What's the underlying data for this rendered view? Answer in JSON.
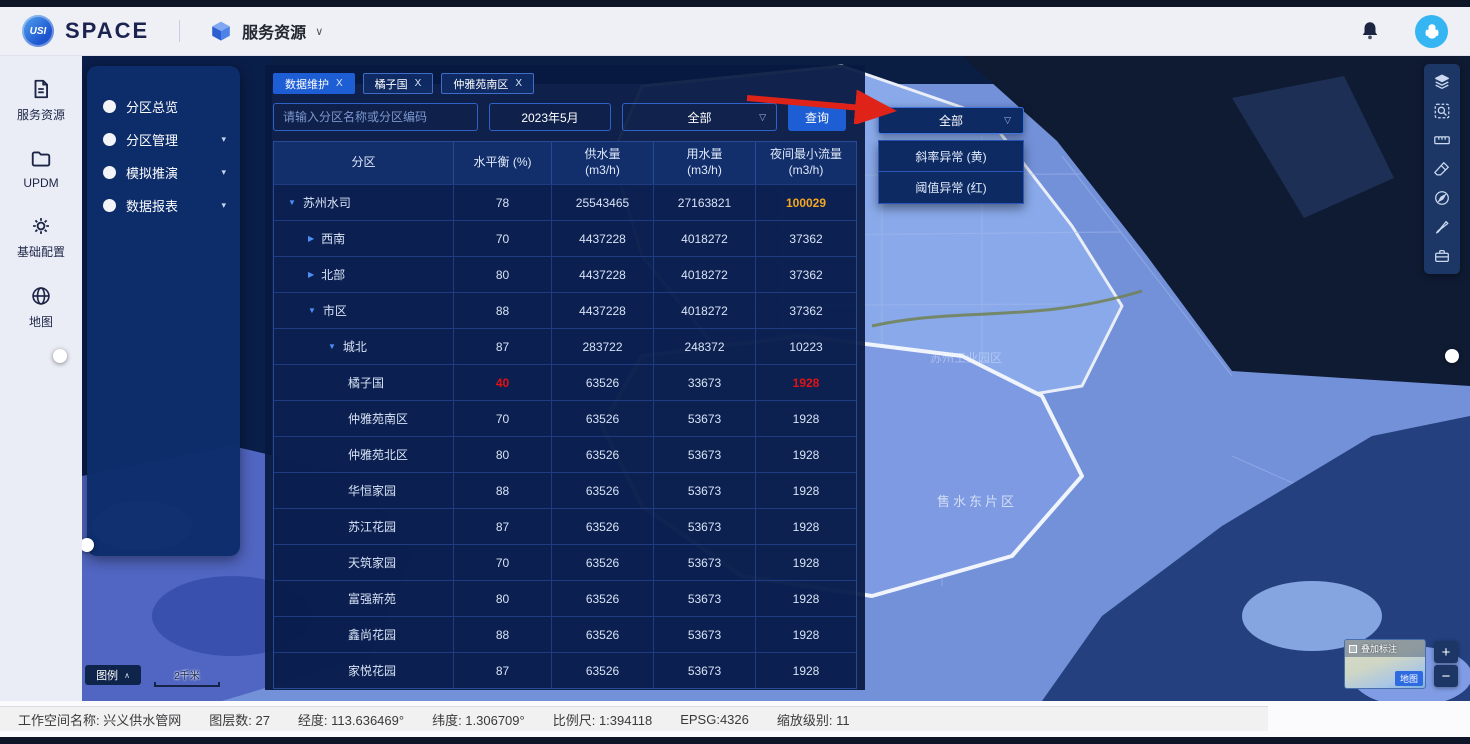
{
  "topbar": {
    "logo_text": "USI",
    "brand": "SPACE",
    "menu_label": "服务资源"
  },
  "sidebar": {
    "items": [
      {
        "label": "服务资源",
        "icon": "document"
      },
      {
        "label": "UPDM",
        "icon": "folder"
      },
      {
        "label": "基础配置",
        "icon": "gear"
      },
      {
        "label": "地图",
        "icon": "globe"
      }
    ]
  },
  "panel_menu": {
    "items": [
      {
        "label": "分区总览",
        "has_children": false
      },
      {
        "label": "分区管理",
        "has_children": true
      },
      {
        "label": "模拟推演",
        "has_children": true
      },
      {
        "label": "数据报表",
        "has_children": true
      }
    ]
  },
  "workspace": {
    "close_label": "X",
    "tabs": [
      {
        "label": "数据维护",
        "active": true
      },
      {
        "label": "橘子国",
        "active": false
      },
      {
        "label": "仲雅苑南区",
        "active": false
      }
    ]
  },
  "filters": {
    "search_placeholder": "请输入分区名称或分区编码",
    "month_value": "2023年5月",
    "type_selected": "全部",
    "query_label": "查询"
  },
  "anomaly_dropdown": {
    "selected": "全部",
    "options": [
      "斜率异常 (黄)",
      "阈值异常 (红)"
    ]
  },
  "table": {
    "columns": [
      "分区",
      "水平衡 (%)",
      "供水量\n(m3/h)",
      "用水量\n(m3/h)",
      "夜间最小流量\n(m3/h)"
    ],
    "rows": [
      {
        "name": "苏州水司",
        "level": 0,
        "expand": "open",
        "balance": "78",
        "supply": "25543465",
        "usage": "27163821",
        "night": "100029",
        "night_color": "orange"
      },
      {
        "name": "西南",
        "level": 1,
        "expand": "closed",
        "balance": "70",
        "supply": "4437228",
        "usage": "4018272",
        "night": "37362"
      },
      {
        "name": "北部",
        "level": 1,
        "expand": "closed",
        "balance": "80",
        "supply": "4437228",
        "usage": "4018272",
        "night": "37362"
      },
      {
        "name": "市区",
        "level": 1,
        "expand": "open",
        "balance": "88",
        "supply": "4437228",
        "usage": "4018272",
        "night": "37362"
      },
      {
        "name": "城北",
        "level": 2,
        "expand": "open",
        "balance": "87",
        "supply": "283722",
        "usage": "248372",
        "night": "10223"
      },
      {
        "name": "橘子国",
        "level": 3,
        "expand": null,
        "balance": "40",
        "balance_color": "red",
        "supply": "63526",
        "usage": "33673",
        "night": "1928",
        "night_color": "red"
      },
      {
        "name": "仲雅苑南区",
        "level": 3,
        "expand": null,
        "balance": "70",
        "supply": "63526",
        "usage": "53673",
        "night": "1928"
      },
      {
        "name": "仲雅苑北区",
        "level": 3,
        "expand": null,
        "balance": "80",
        "supply": "63526",
        "usage": "53673",
        "night": "1928"
      },
      {
        "name": "华恒家园",
        "level": 3,
        "expand": null,
        "balance": "88",
        "supply": "63526",
        "usage": "53673",
        "night": "1928"
      },
      {
        "name": "苏江花园",
        "level": 3,
        "expand": null,
        "balance": "87",
        "supply": "63526",
        "usage": "53673",
        "night": "1928"
      },
      {
        "name": "天筑家园",
        "level": 3,
        "expand": null,
        "balance": "70",
        "supply": "63526",
        "usage": "53673",
        "night": "1928"
      },
      {
        "name": "富强新苑",
        "level": 3,
        "expand": null,
        "balance": "80",
        "supply": "63526",
        "usage": "53673",
        "night": "1928"
      },
      {
        "name": "鑫尚花园",
        "level": 3,
        "expand": null,
        "balance": "88",
        "supply": "63526",
        "usage": "53673",
        "night": "1928"
      },
      {
        "name": "家悦花园",
        "level": 3,
        "expand": null,
        "balance": "87",
        "supply": "63526",
        "usage": "53673",
        "night": "1928"
      }
    ]
  },
  "map": {
    "region_label": "售水东片区",
    "faint_label": "苏州工业园区",
    "legend_label": "图例",
    "scale_label": "2千米",
    "overlay_label": "叠加标注",
    "minimap_button": "地图",
    "zoom_in": "+",
    "zoom_out": "−"
  },
  "map_toolbar": {
    "icons": [
      "layers",
      "zoom-select",
      "ruler",
      "eraser",
      "compass",
      "brush",
      "toolbox"
    ]
  },
  "statusbar": {
    "segments": [
      "工作空间名称: 兴义供水管网",
      "图层数: 27",
      "经度: 113.636469°",
      "纬度: 1.306709°",
      "比例尺: 1:394118",
      "EPSG:4326",
      "缩放级别: 11"
    ]
  },
  "colors": {
    "accent_blue": "#1e5ed5",
    "panel_navy": "#0a1f4e",
    "alert_red": "#e31212",
    "warn_orange": "#f5a623",
    "map_base": "#7391d9"
  }
}
